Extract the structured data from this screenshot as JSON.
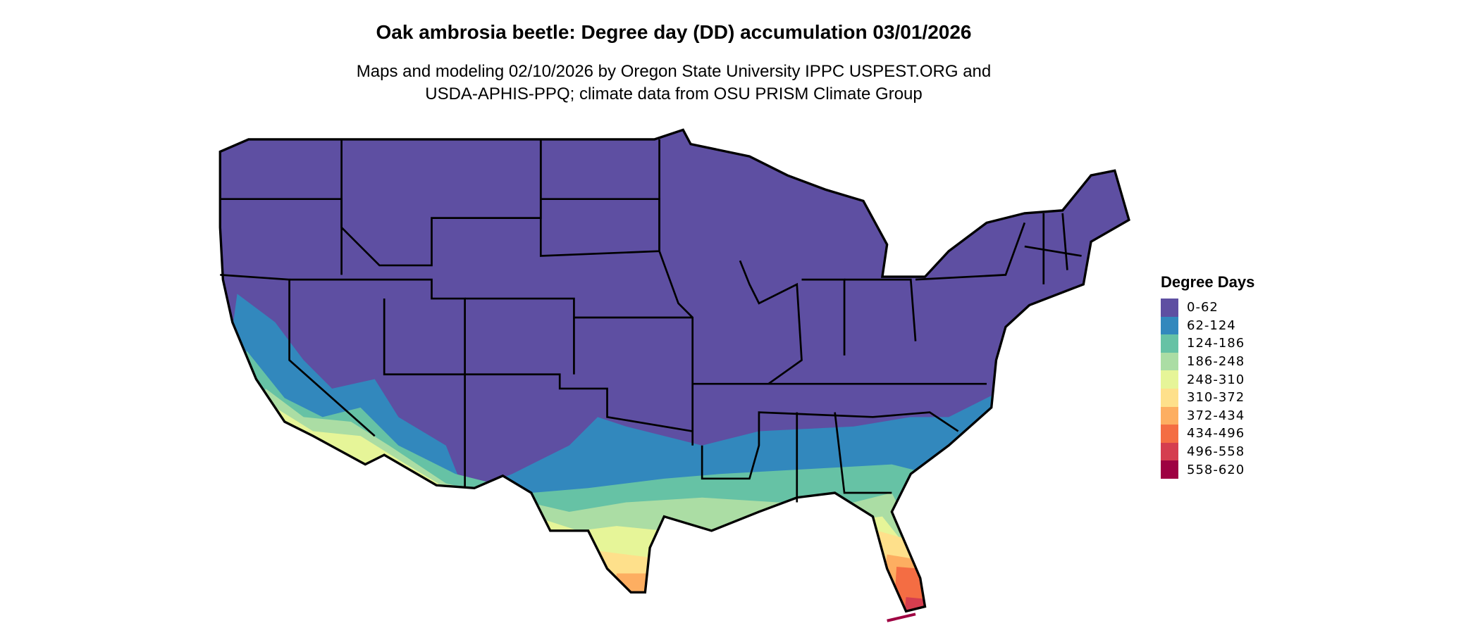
{
  "title": "Oak ambrosia beetle: Degree day (DD) accumulation 03/01/2026",
  "subtitle": [
    "Maps and modeling 02/10/2026 by Oregon State University IPPC USPEST.ORG and",
    "USDA-APHIS-PPQ; climate data from OSU PRISM Climate Group"
  ],
  "legend": {
    "title": "Degree Days",
    "items": [
      {
        "label": "0-62",
        "color": "#5E4FA2"
      },
      {
        "label": "62-124",
        "color": "#3288BD"
      },
      {
        "label": "124-186",
        "color": "#66C2A5"
      },
      {
        "label": "186-248",
        "color": "#ABDDA4"
      },
      {
        "label": "248-310",
        "color": "#E6F598"
      },
      {
        "label": "310-372",
        "color": "#FEE08B"
      },
      {
        "label": "372-434",
        "color": "#FDAE61"
      },
      {
        "label": "434-496",
        "color": "#F46D43"
      },
      {
        "label": "496-558",
        "color": "#D53E4F"
      },
      {
        "label": "558-620",
        "color": "#9E0142"
      }
    ]
  },
  "map": {
    "region": "Contiguous United States",
    "boundary_color": "#000000"
  }
}
